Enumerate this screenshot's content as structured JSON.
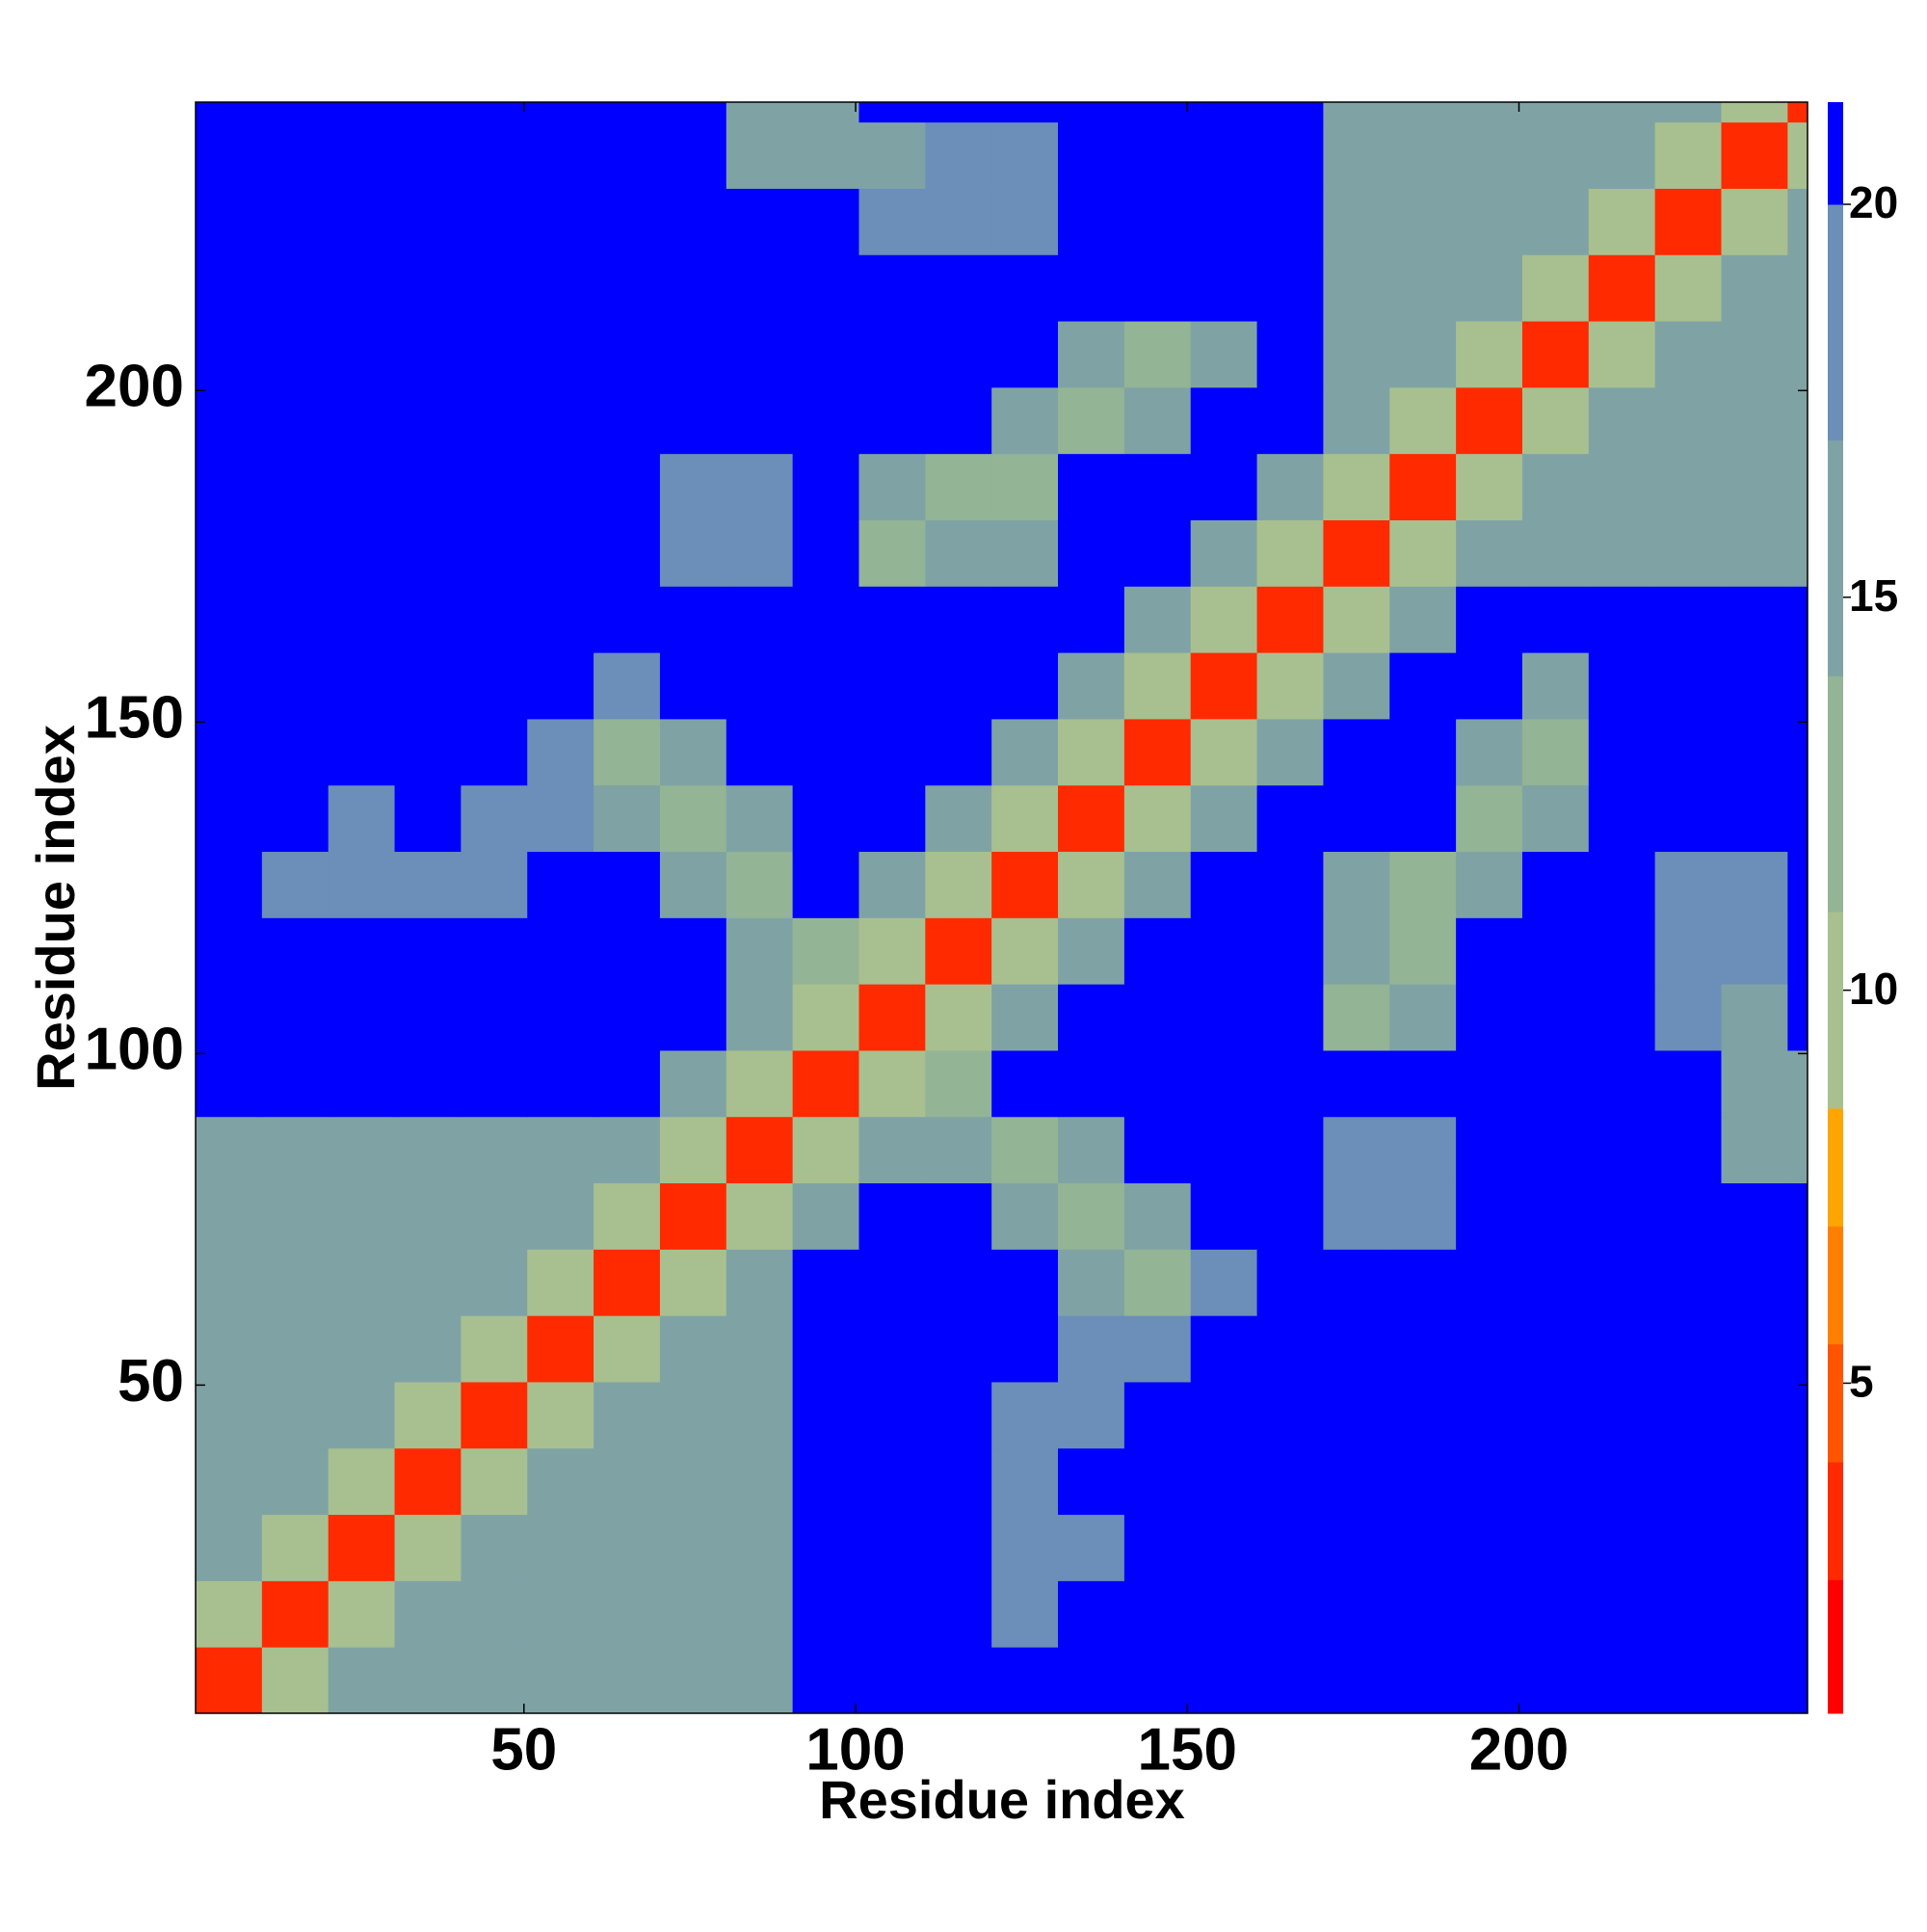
{
  "chart_data": {
    "type": "heatmap",
    "x_label": "Residue index",
    "y_label": "Residue index",
    "xlim": [
      0.5,
      243.5
    ],
    "ylim": [
      0.5,
      243.5
    ],
    "xticks": [
      50,
      100,
      150,
      200
    ],
    "yticks": [
      50,
      100,
      150,
      200
    ],
    "x_edges": [
      0.5,
      10.5,
      20.5,
      30.5,
      40.5,
      50.5,
      60.5,
      70.5,
      80.5,
      90.5,
      100.5,
      110.5,
      120.5,
      130.5,
      140.5,
      150.5,
      160.5,
      170.5,
      180.5,
      190.5,
      200.5,
      210.5,
      220.5,
      230.5,
      240.5,
      243.5
    ],
    "y_edges": [
      0.5,
      10.5,
      20.5,
      30.5,
      40.5,
      50.5,
      60.5,
      70.5,
      80.5,
      90.5,
      100.5,
      110.5,
      120.5,
      130.5,
      140.5,
      150.5,
      160.5,
      170.5,
      180.5,
      190.5,
      200.5,
      210.5,
      220.5,
      230.5,
      240.5,
      243.5
    ],
    "z": [
      [
        3,
        10,
        14,
        14,
        14,
        14,
        14,
        14,
        14,
        21,
        21,
        21,
        21,
        21,
        21,
        21,
        21,
        21,
        21,
        21,
        21,
        21,
        21,
        21,
        21
      ],
      [
        10,
        3,
        10,
        14,
        14,
        14,
        14,
        14,
        14,
        21,
        21,
        21,
        19,
        21,
        21,
        21,
        21,
        21,
        21,
        21,
        21,
        21,
        21,
        21,
        21
      ],
      [
        14,
        10,
        3,
        10,
        14,
        14,
        14,
        14,
        14,
        21,
        21,
        21,
        19,
        19,
        21,
        21,
        21,
        21,
        21,
        21,
        21,
        21,
        21,
        21,
        21
      ],
      [
        14,
        14,
        10,
        3,
        10,
        14,
        14,
        14,
        14,
        21,
        21,
        21,
        19,
        21,
        21,
        21,
        21,
        21,
        21,
        21,
        21,
        21,
        21,
        21,
        21
      ],
      [
        14,
        14,
        14,
        10,
        3,
        10,
        14,
        14,
        14,
        21,
        21,
        21,
        19,
        19,
        21,
        21,
        21,
        21,
        21,
        21,
        21,
        21,
        21,
        21,
        21
      ],
      [
        14,
        14,
        14,
        14,
        10,
        3,
        10,
        14,
        14,
        21,
        21,
        21,
        21,
        19,
        17,
        21,
        21,
        21,
        21,
        21,
        21,
        21,
        21,
        21,
        21
      ],
      [
        14,
        14,
        14,
        14,
        14,
        10,
        3,
        10,
        14,
        21,
        21,
        21,
        21,
        15,
        12,
        17,
        21,
        21,
        21,
        21,
        21,
        21,
        21,
        21,
        21
      ],
      [
        14,
        14,
        14,
        14,
        14,
        14,
        10,
        3,
        10,
        15,
        21,
        21,
        15,
        12,
        15,
        21,
        21,
        19,
        19,
        21,
        21,
        21,
        21,
        21,
        21
      ],
      [
        14,
        14,
        14,
        14,
        14,
        14,
        14,
        10,
        3,
        10,
        15,
        15,
        12,
        15,
        21,
        21,
        21,
        19,
        19,
        21,
        21,
        21,
        21,
        15,
        15
      ],
      [
        21,
        21,
        21,
        21,
        21,
        21,
        21,
        15,
        10,
        3,
        10,
        12,
        21,
        21,
        21,
        21,
        21,
        21,
        21,
        21,
        21,
        21,
        21,
        15,
        15
      ],
      [
        21,
        21,
        21,
        21,
        21,
        21,
        21,
        21,
        15,
        10,
        3,
        10,
        15,
        21,
        21,
        21,
        21,
        12,
        16,
        21,
        21,
        21,
        17,
        16,
        21
      ],
      [
        21,
        21,
        21,
        21,
        21,
        21,
        21,
        21,
        15,
        12,
        10,
        3,
        10,
        15,
        21,
        21,
        21,
        15,
        12,
        21,
        21,
        21,
        17,
        17,
        21
      ],
      [
        21,
        19,
        19,
        19,
        19,
        21,
        21,
        15,
        12,
        21,
        15,
        10,
        3,
        10,
        15,
        21,
        21,
        16,
        13,
        15,
        21,
        21,
        17,
        18,
        21
      ],
      [
        21,
        21,
        19,
        21,
        19,
        19,
        15,
        12,
        15,
        21,
        21,
        15,
        10,
        3,
        10,
        15,
        21,
        21,
        21,
        12,
        15,
        21,
        21,
        21,
        21
      ],
      [
        21,
        21,
        21,
        21,
        21,
        17,
        12,
        15,
        21,
        21,
        21,
        21,
        15,
        10,
        3,
        10,
        15,
        21,
        21,
        15,
        12,
        21,
        21,
        21,
        21
      ],
      [
        21,
        21,
        21,
        21,
        21,
        21,
        17,
        21,
        21,
        21,
        21,
        21,
        21,
        15,
        10,
        3,
        10,
        15,
        21,
        21,
        16,
        21,
        21,
        21,
        21
      ],
      [
        21,
        21,
        21,
        21,
        21,
        21,
        21,
        21,
        21,
        21,
        21,
        21,
        21,
        21,
        15,
        10,
        3,
        10,
        15,
        21,
        21,
        21,
        21,
        21,
        21
      ],
      [
        21,
        21,
        21,
        21,
        21,
        21,
        21,
        19,
        19,
        21,
        12,
        15,
        16,
        21,
        21,
        15,
        10,
        3,
        10,
        14,
        14,
        14,
        14,
        14,
        14
      ],
      [
        21,
        21,
        21,
        21,
        21,
        21,
        21,
        19,
        19,
        21,
        16,
        12,
        13,
        21,
        21,
        21,
        15,
        10,
        3,
        10,
        14,
        14,
        14,
        14,
        14
      ],
      [
        21,
        21,
        21,
        21,
        21,
        21,
        21,
        21,
        21,
        21,
        21,
        21,
        15,
        12,
        15,
        21,
        21,
        14,
        10,
        3,
        10,
        14,
        14,
        14,
        14
      ],
      [
        21,
        21,
        21,
        21,
        21,
        21,
        21,
        21,
        21,
        21,
        21,
        21,
        21,
        15,
        12,
        16,
        21,
        14,
        14,
        10,
        3,
        10,
        14,
        14,
        14
      ],
      [
        21,
        21,
        21,
        21,
        21,
        21,
        21,
        21,
        21,
        21,
        21,
        21,
        21,
        21,
        21,
        21,
        21,
        14,
        14,
        14,
        10,
        3,
        10,
        14,
        14
      ],
      [
        21,
        21,
        21,
        21,
        21,
        21,
        21,
        21,
        21,
        21,
        17,
        17,
        17,
        21,
        21,
        21,
        21,
        14,
        14,
        14,
        14,
        10,
        3,
        10,
        14
      ],
      [
        21,
        21,
        21,
        21,
        21,
        21,
        21,
        21,
        15,
        15,
        16,
        17,
        18,
        21,
        21,
        21,
        21,
        14,
        14,
        14,
        14,
        14,
        10,
        3,
        10
      ],
      [
        21,
        21,
        21,
        21,
        21,
        21,
        21,
        21,
        15,
        15,
        21,
        21,
        21,
        21,
        21,
        21,
        21,
        14,
        14,
        14,
        14,
        14,
        14,
        10,
        3
      ]
    ],
    "zlim": [
      0.8,
      21.3
    ],
    "zticks": [
      5,
      10,
      15,
      20
    ],
    "colorscale": [
      [
        0.8,
        "#ff0000"
      ],
      [
        2.5,
        "#ff2a00"
      ],
      [
        4,
        "#ff5500"
      ],
      [
        5.5,
        "#ff7f00"
      ],
      [
        7,
        "#ffa500"
      ],
      [
        8.5,
        "#a8c08f"
      ],
      [
        11,
        "#93b495"
      ],
      [
        14,
        "#7fa3a5"
      ],
      [
        17,
        "#6b8fb8"
      ],
      [
        20,
        "#0000ff"
      ]
    ]
  }
}
